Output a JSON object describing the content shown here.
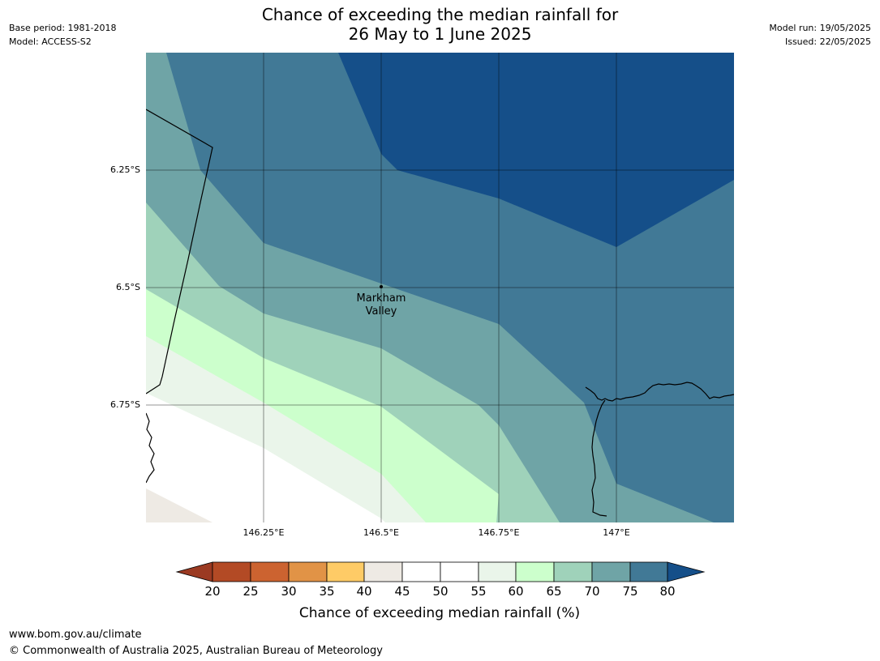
{
  "title": {
    "line1": "Chance of exceeding the median rainfall for",
    "line2": "26 May to 1 June 2025"
  },
  "meta_left": {
    "base_period": "Base period: 1981-2018",
    "model": "Model: ACCESS-S2"
  },
  "meta_right": {
    "model_run": "Model run: 19/05/2025",
    "issued": "Issued: 22/05/2025"
  },
  "map": {
    "lat_labels": [
      "6.25°S",
      "6.5°S",
      "6.75°S"
    ],
    "lon_labels": [
      "146.25°E",
      "146.5°E",
      "146.75°E",
      "147°E"
    ],
    "place": {
      "line1": "Markham",
      "line2": "Valley"
    }
  },
  "colorbar": {
    "ticks": [
      "20",
      "25",
      "30",
      "35",
      "40",
      "45",
      "50",
      "55",
      "60",
      "65",
      "70",
      "75",
      "80"
    ],
    "colors": {
      "below_20": "#9b3a22",
      "20_25": "#b34a25",
      "25_30": "#cc6330",
      "30_35": "#e19346",
      "35_40": "#fecb66",
      "40_45": "#eeeae4",
      "45_50": "#ffffff",
      "50_55": "#ffffff",
      "55_60": "#eaf5ea",
      "60_65": "#ccffcc",
      "65_70": "#9fd2ba",
      "70_75": "#6fa4a6",
      "75_80": "#417996",
      "above_80": "#154f89"
    },
    "title": "Chance of exceeding median rainfall (%)"
  },
  "footer": {
    "url": "www.bom.gov.au/climate",
    "copyright": "© Commonwealth of Australia 2025, Australian Bureau of Meteorology"
  }
}
